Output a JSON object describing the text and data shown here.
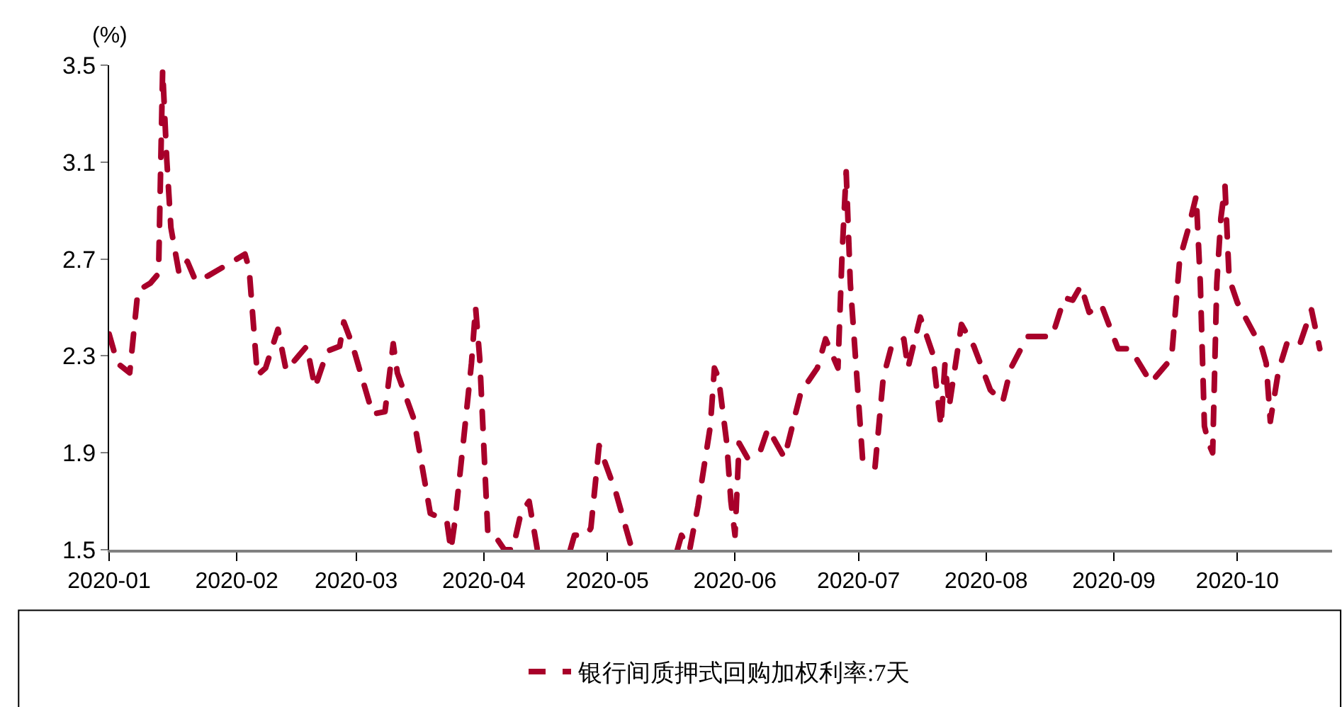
{
  "chart_data": {
    "type": "line",
    "ylabel": "(%)",
    "x": [
      "2020-01-01",
      "2020-01-03",
      "2020-01-06",
      "2020-01-08",
      "2020-01-11",
      "2020-01-13",
      "2020-01-14",
      "2020-01-15",
      "2020-01-16",
      "2020-01-18",
      "2020-01-20",
      "2020-01-22",
      "2020-01-25",
      "2020-02-03",
      "2020-02-04",
      "2020-02-06",
      "2020-02-08",
      "2020-02-11",
      "2020-02-13",
      "2020-02-16",
      "2020-02-18",
      "2020-02-20",
      "2020-02-23",
      "2020-02-26",
      "2020-02-27",
      "2020-02-29",
      "2020-03-05",
      "2020-03-08",
      "2020-03-10",
      "2020-03-11",
      "2020-03-15",
      "2020-03-19",
      "2020-03-23",
      "2020-03-24",
      "2020-03-25",
      "2020-03-27",
      "2020-03-29",
      "2020-03-30",
      "2020-03-31",
      "2020-04-02",
      "2020-04-04",
      "2020-04-06",
      "2020-04-08",
      "2020-04-10",
      "2020-04-12",
      "2020-04-14",
      "2020-04-18",
      "2020-04-22",
      "2020-04-23",
      "2020-04-26",
      "2020-04-27",
      "2020-04-29",
      "2020-04-30",
      "2020-05-03",
      "2020-05-05",
      "2020-05-07",
      "2020-05-12",
      "2020-05-18",
      "2020-05-19",
      "2020-05-21",
      "2020-05-23",
      "2020-05-26",
      "2020-05-27",
      "2020-05-28",
      "2020-05-30",
      "2020-05-31",
      "2020-06-01",
      "2020-06-02",
      "2020-06-04",
      "2020-06-07",
      "2020-06-09",
      "2020-06-13",
      "2020-06-17",
      "2020-06-21",
      "2020-06-23",
      "2020-06-26",
      "2020-06-27",
      "2020-06-28",
      "2020-06-29",
      "2020-07-02",
      "2020-07-05",
      "2020-07-07",
      "2020-07-09",
      "2020-07-12",
      "2020-07-13",
      "2020-07-16",
      "2020-07-19",
      "2020-07-21",
      "2020-07-22",
      "2020-07-23",
      "2020-07-26",
      "2020-07-29",
      "2020-08-02",
      "2020-08-05",
      "2020-08-07",
      "2020-08-11",
      "2020-08-17",
      "2020-08-20",
      "2020-08-22",
      "2020-08-24",
      "2020-08-26",
      "2020-08-29",
      "2020-09-02",
      "2020-09-05",
      "2020-09-10",
      "2020-09-15",
      "2020-09-17",
      "2020-09-19",
      "2020-09-21",
      "2020-09-22",
      "2020-09-23",
      "2020-09-24",
      "2020-09-25",
      "2020-09-26",
      "2020-09-27",
      "2020-09-28",
      "2020-09-29",
      "2020-10-01",
      "2020-10-07",
      "2020-10-08",
      "2020-10-09",
      "2020-10-11",
      "2020-10-13",
      "2020-10-16",
      "2020-10-19",
      "2020-10-21"
    ],
    "series": [
      {
        "name": "银行间质押式回购加权利率:7天",
        "color": "#a8002a",
        "values": [
          2.39,
          2.27,
          2.23,
          2.57,
          2.6,
          2.64,
          3.48,
          3.11,
          2.83,
          2.64,
          2.69,
          2.61,
          2.63,
          2.72,
          2.66,
          2.22,
          2.25,
          2.41,
          2.24,
          2.3,
          2.34,
          2.17,
          2.32,
          2.34,
          2.44,
          2.35,
          2.06,
          2.07,
          2.35,
          2.23,
          2.04,
          1.65,
          1.62,
          1.5,
          1.62,
          1.94,
          2.27,
          2.5,
          2.29,
          1.56,
          1.55,
          1.5,
          1.5,
          1.65,
          1.7,
          1.5,
          null,
          1.5,
          1.56,
          1.56,
          1.59,
          1.93,
          1.88,
          1.74,
          1.62,
          1.5,
          null,
          1.5,
          1.56,
          1.5,
          1.68,
          2.01,
          2.25,
          2.21,
          1.94,
          1.7,
          1.56,
          1.94,
          1.88,
          1.9,
          2.0,
          1.88,
          2.15,
          2.25,
          2.37,
          2.25,
          2.72,
          3.06,
          2.6,
          1.87,
          1.84,
          2.21,
          2.34,
          2.37,
          2.25,
          2.46,
          2.31,
          2.01,
          2.27,
          2.09,
          2.43,
          2.34,
          2.16,
          2.11,
          2.25,
          2.38,
          2.38,
          2.54,
          2.53,
          2.59,
          2.48,
          2.51,
          2.33,
          2.33,
          2.19,
          2.29,
          2.7,
          2.82,
          2.96,
          2.6,
          2.01,
          1.94,
          1.9,
          2.6,
          2.87,
          3.0,
          2.62,
          2.52,
          2.33,
          2.27,
          2.03,
          2.24,
          2.35,
          2.34,
          2.49,
          2.33
        ]
      }
    ],
    "xlim": [
      "2020-01-01",
      "2020-10-24"
    ],
    "xticks": [
      "2020-01",
      "2020-02",
      "2020-03",
      "2020-04",
      "2020-05",
      "2020-06",
      "2020-07",
      "2020-08",
      "2020-09",
      "2020-10"
    ],
    "ylim": [
      1.5,
      3.5
    ],
    "yticks": [
      1.5,
      1.9,
      2.3,
      2.7,
      3.1,
      3.5
    ],
    "grid": false,
    "legend": "bottom",
    "marker": "none",
    "line_style": "dashed"
  }
}
